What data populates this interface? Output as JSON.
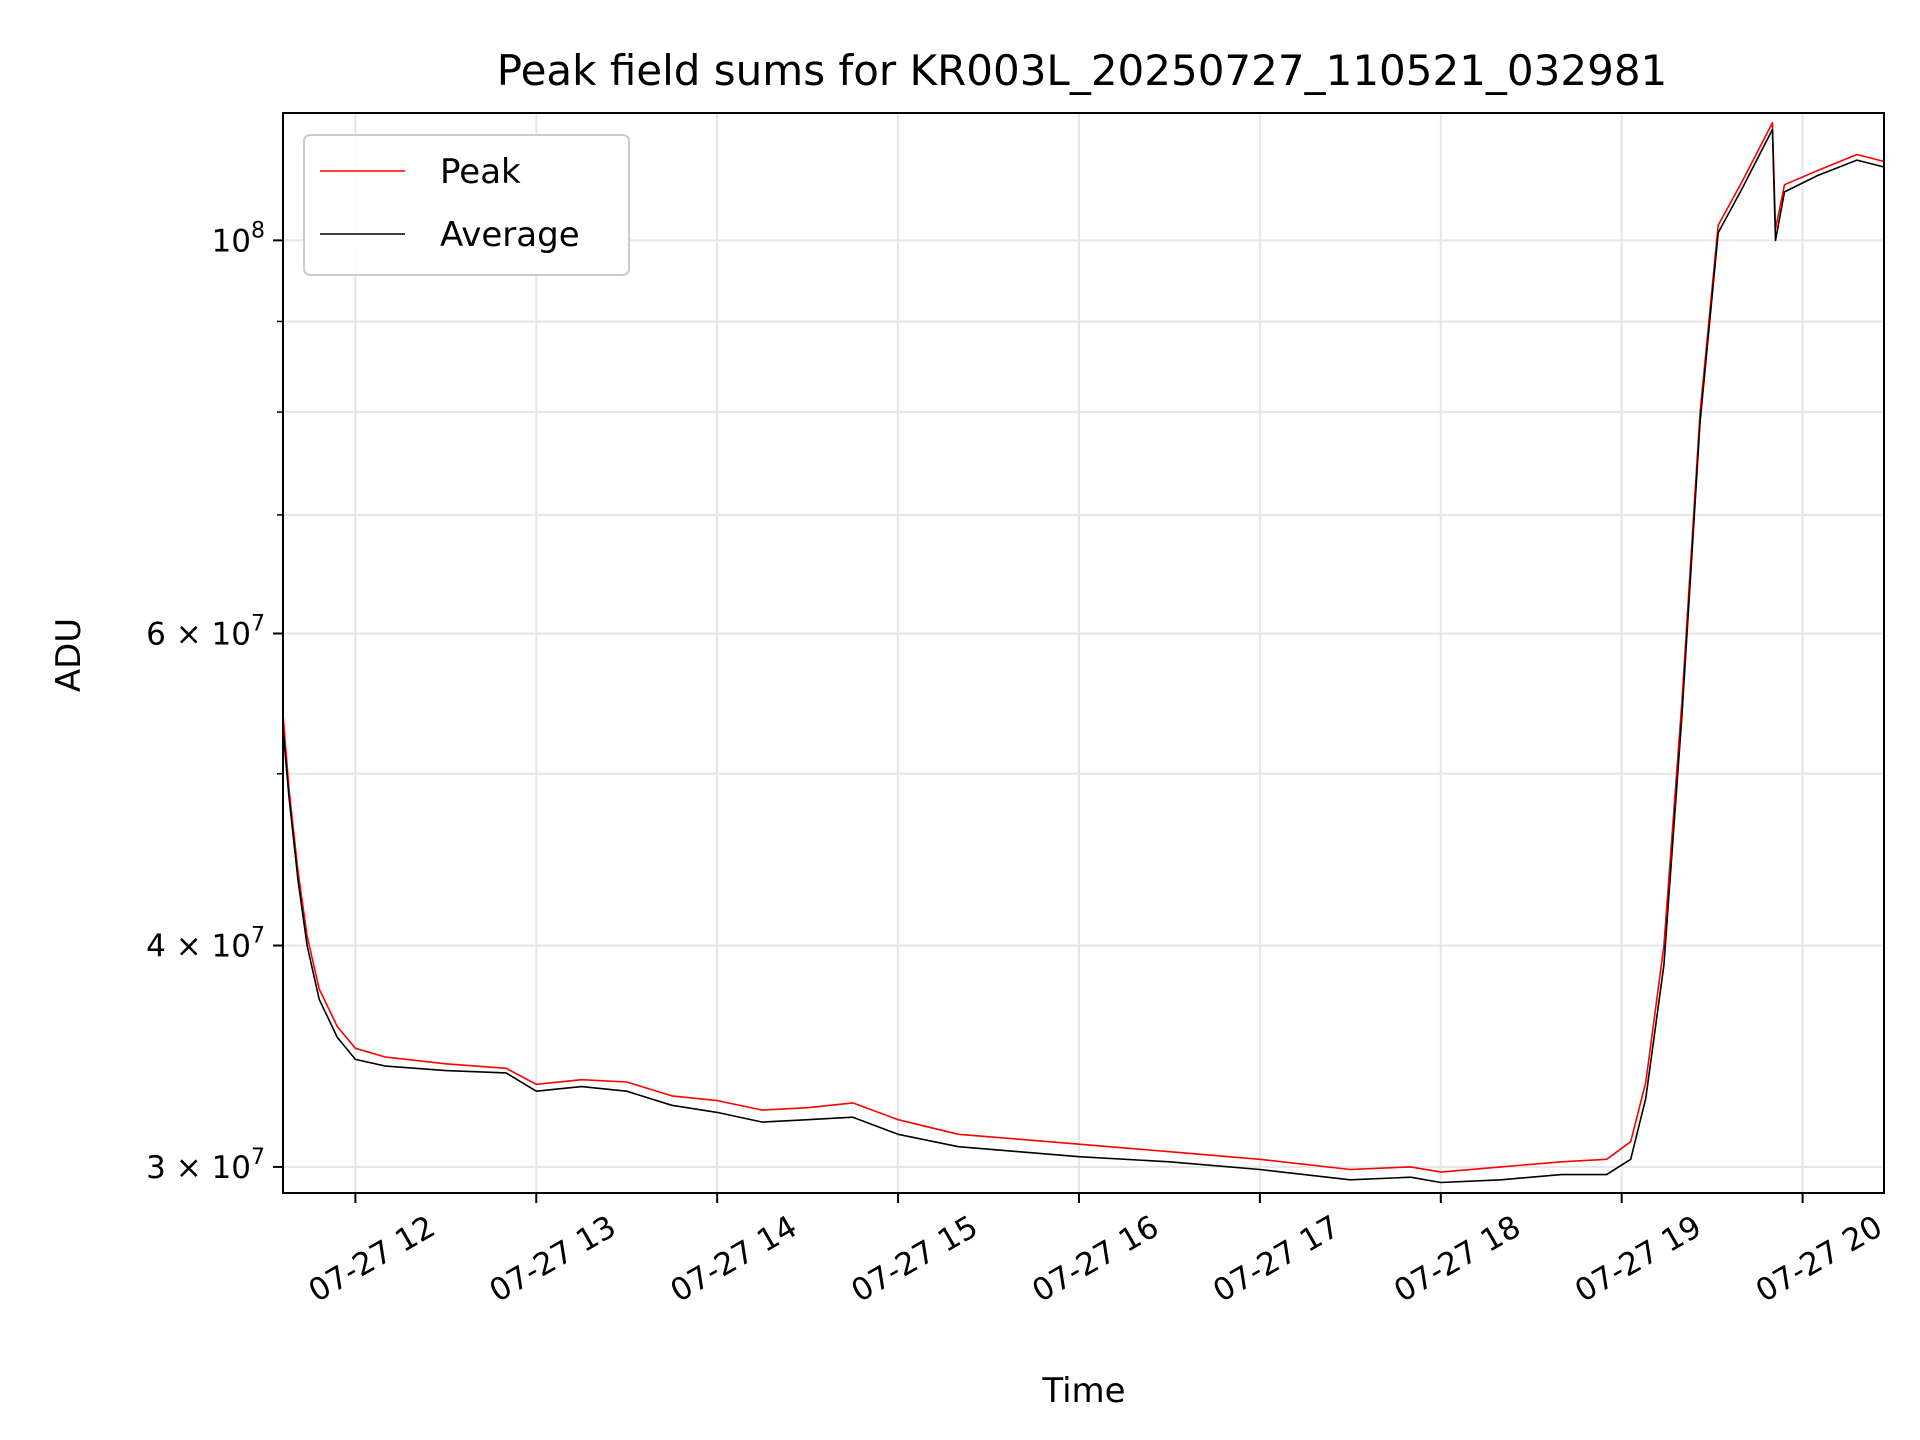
{
  "chart_data": {
    "type": "line",
    "title": "Peak field sums for KR003L_20250727_110521_032981",
    "xlabel": "Time",
    "ylabel": "ADU",
    "y_scale": "log",
    "ylim": [
      29000000,
      118000000
    ],
    "xlim": [
      "2025-07-27 11:36",
      "2025-07-27 20:27"
    ],
    "grid": true,
    "legend": "top-left",
    "x_ticks": [
      {
        "value": "2025-07-27 12:00",
        "label": "07-27 12"
      },
      {
        "value": "2025-07-27 13:00",
        "label": "07-27 13"
      },
      {
        "value": "2025-07-27 14:00",
        "label": "07-27 14"
      },
      {
        "value": "2025-07-27 15:00",
        "label": "07-27 15"
      },
      {
        "value": "2025-07-27 16:00",
        "label": "07-27 16"
      },
      {
        "value": "2025-07-27 17:00",
        "label": "07-27 17"
      },
      {
        "value": "2025-07-27 18:00",
        "label": "07-27 18"
      },
      {
        "value": "2025-07-27 19:00",
        "label": "07-27 19"
      },
      {
        "value": "2025-07-27 20:00",
        "label": "07-27 20"
      }
    ],
    "y_ticks": [
      {
        "value": 30000000,
        "base": "3 × 10",
        "exp": "7"
      },
      {
        "value": 40000000,
        "base": "4 × 10",
        "exp": "7"
      },
      {
        "value": 60000000,
        "base": "6 × 10",
        "exp": "7"
      },
      {
        "value": 100000000,
        "base": "10",
        "exp": "8"
      }
    ],
    "y_minor_ticks": [
      50000000,
      70000000,
      80000000,
      90000000
    ],
    "series": [
      {
        "name": "Peak",
        "color": "#ff0000",
        "points": [
          [
            "2025-07-27 11:36",
            54000000
          ],
          [
            "2025-07-27 11:38",
            49000000
          ],
          [
            "2025-07-27 11:41",
            44000000
          ],
          [
            "2025-07-27 11:44",
            40500000
          ],
          [
            "2025-07-27 11:48",
            37800000
          ],
          [
            "2025-07-27 11:54",
            36000000
          ],
          [
            "2025-07-27 12:00",
            35000000
          ],
          [
            "2025-07-27 12:10",
            34600000
          ],
          [
            "2025-07-27 12:30",
            34300000
          ],
          [
            "2025-07-27 12:50",
            34100000
          ],
          [
            "2025-07-27 13:00",
            33400000
          ],
          [
            "2025-07-27 13:15",
            33600000
          ],
          [
            "2025-07-27 13:30",
            33500000
          ],
          [
            "2025-07-27 13:45",
            32900000
          ],
          [
            "2025-07-27 14:00",
            32700000
          ],
          [
            "2025-07-27 14:15",
            32300000
          ],
          [
            "2025-07-27 14:30",
            32400000
          ],
          [
            "2025-07-27 14:45",
            32600000
          ],
          [
            "2025-07-27 15:00",
            31900000
          ],
          [
            "2025-07-27 15:20",
            31300000
          ],
          [
            "2025-07-27 15:40",
            31100000
          ],
          [
            "2025-07-27 16:00",
            30900000
          ],
          [
            "2025-07-27 16:30",
            30600000
          ],
          [
            "2025-07-27 17:00",
            30300000
          ],
          [
            "2025-07-27 17:30",
            29900000
          ],
          [
            "2025-07-27 17:50",
            30000000
          ],
          [
            "2025-07-27 18:00",
            29800000
          ],
          [
            "2025-07-27 18:20",
            30000000
          ],
          [
            "2025-07-27 18:40",
            30200000
          ],
          [
            "2025-07-27 18:55",
            30300000
          ],
          [
            "2025-07-27 19:03",
            31000000
          ],
          [
            "2025-07-27 19:08",
            33500000
          ],
          [
            "2025-07-27 19:14",
            40000000
          ],
          [
            "2025-07-27 19:20",
            55000000
          ],
          [
            "2025-07-27 19:26",
            80000000
          ],
          [
            "2025-07-27 19:32",
            102000000
          ],
          [
            "2025-07-27 19:40",
            108000000
          ],
          [
            "2025-07-27 19:50",
            116500000
          ],
          [
            "2025-07-27 19:51",
            101500000
          ],
          [
            "2025-07-27 19:54",
            107500000
          ],
          [
            "2025-07-27 20:05",
            109500000
          ],
          [
            "2025-07-27 20:18",
            111800000
          ],
          [
            "2025-07-27 20:27",
            110800000
          ]
        ]
      },
      {
        "name": "Average",
        "color": "#000000",
        "points": [
          [
            "2025-07-27 11:36",
            53000000
          ],
          [
            "2025-07-27 11:38",
            48500000
          ],
          [
            "2025-07-27 11:41",
            43500000
          ],
          [
            "2025-07-27 11:44",
            40000000
          ],
          [
            "2025-07-27 11:48",
            37300000
          ],
          [
            "2025-07-27 11:54",
            35500000
          ],
          [
            "2025-07-27 12:00",
            34500000
          ],
          [
            "2025-07-27 12:10",
            34200000
          ],
          [
            "2025-07-27 12:30",
            34000000
          ],
          [
            "2025-07-27 12:50",
            33900000
          ],
          [
            "2025-07-27 13:00",
            33100000
          ],
          [
            "2025-07-27 13:15",
            33300000
          ],
          [
            "2025-07-27 13:30",
            33100000
          ],
          [
            "2025-07-27 13:45",
            32500000
          ],
          [
            "2025-07-27 14:00",
            32200000
          ],
          [
            "2025-07-27 14:15",
            31800000
          ],
          [
            "2025-07-27 14:30",
            31900000
          ],
          [
            "2025-07-27 14:45",
            32000000
          ],
          [
            "2025-07-27 15:00",
            31300000
          ],
          [
            "2025-07-27 15:20",
            30800000
          ],
          [
            "2025-07-27 15:40",
            30600000
          ],
          [
            "2025-07-27 16:00",
            30400000
          ],
          [
            "2025-07-27 16:30",
            30200000
          ],
          [
            "2025-07-27 17:00",
            29900000
          ],
          [
            "2025-07-27 17:30",
            29500000
          ],
          [
            "2025-07-27 17:50",
            29600000
          ],
          [
            "2025-07-27 18:00",
            29400000
          ],
          [
            "2025-07-27 18:20",
            29500000
          ],
          [
            "2025-07-27 18:40",
            29700000
          ],
          [
            "2025-07-27 18:55",
            29700000
          ],
          [
            "2025-07-27 19:03",
            30300000
          ],
          [
            "2025-07-27 19:08",
            32800000
          ],
          [
            "2025-07-27 19:14",
            39000000
          ],
          [
            "2025-07-27 19:20",
            54000000
          ],
          [
            "2025-07-27 19:26",
            79000000
          ],
          [
            "2025-07-27 19:32",
            101000000
          ],
          [
            "2025-07-27 19:40",
            107000000
          ],
          [
            "2025-07-27 19:50",
            115500000
          ],
          [
            "2025-07-27 19:51",
            100000000
          ],
          [
            "2025-07-27 19:54",
            106500000
          ],
          [
            "2025-07-27 20:05",
            108800000
          ],
          [
            "2025-07-27 20:18",
            111000000
          ],
          [
            "2025-07-27 20:27",
            110000000
          ]
        ]
      }
    ]
  }
}
